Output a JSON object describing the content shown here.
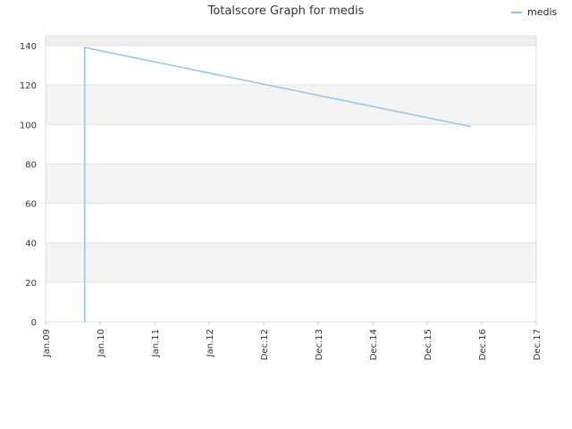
{
  "chart_data": {
    "type": "line",
    "title": "Totalscore Graph for medis",
    "xlabel": "",
    "ylabel": "",
    "x_ticks": [
      "Jan.09",
      "Jan.10",
      "Jan.11",
      "Jan.12",
      "Dec.12",
      "Dec.13",
      "Dec.14",
      "Dec.15",
      "Dec.16",
      "Dec.17"
    ],
    "x_range": [
      "2009-01-01",
      "2017-12-31"
    ],
    "ylim": [
      0,
      145
    ],
    "y_ticks": [
      0,
      20,
      40,
      60,
      80,
      100,
      120,
      140
    ],
    "grid": true,
    "legend_position": "top-right",
    "series": [
      {
        "name": "medis",
        "color": "#8ec4ee",
        "points": [
          {
            "x": "2009-09-20",
            "y": 0
          },
          {
            "x": "2009-09-20",
            "y": 36
          },
          {
            "x": "2009-09-20",
            "y": 40
          },
          {
            "x": "2009-09-20",
            "y": 139
          },
          {
            "x": "2016-10-15",
            "y": 99
          }
        ]
      }
    ]
  }
}
